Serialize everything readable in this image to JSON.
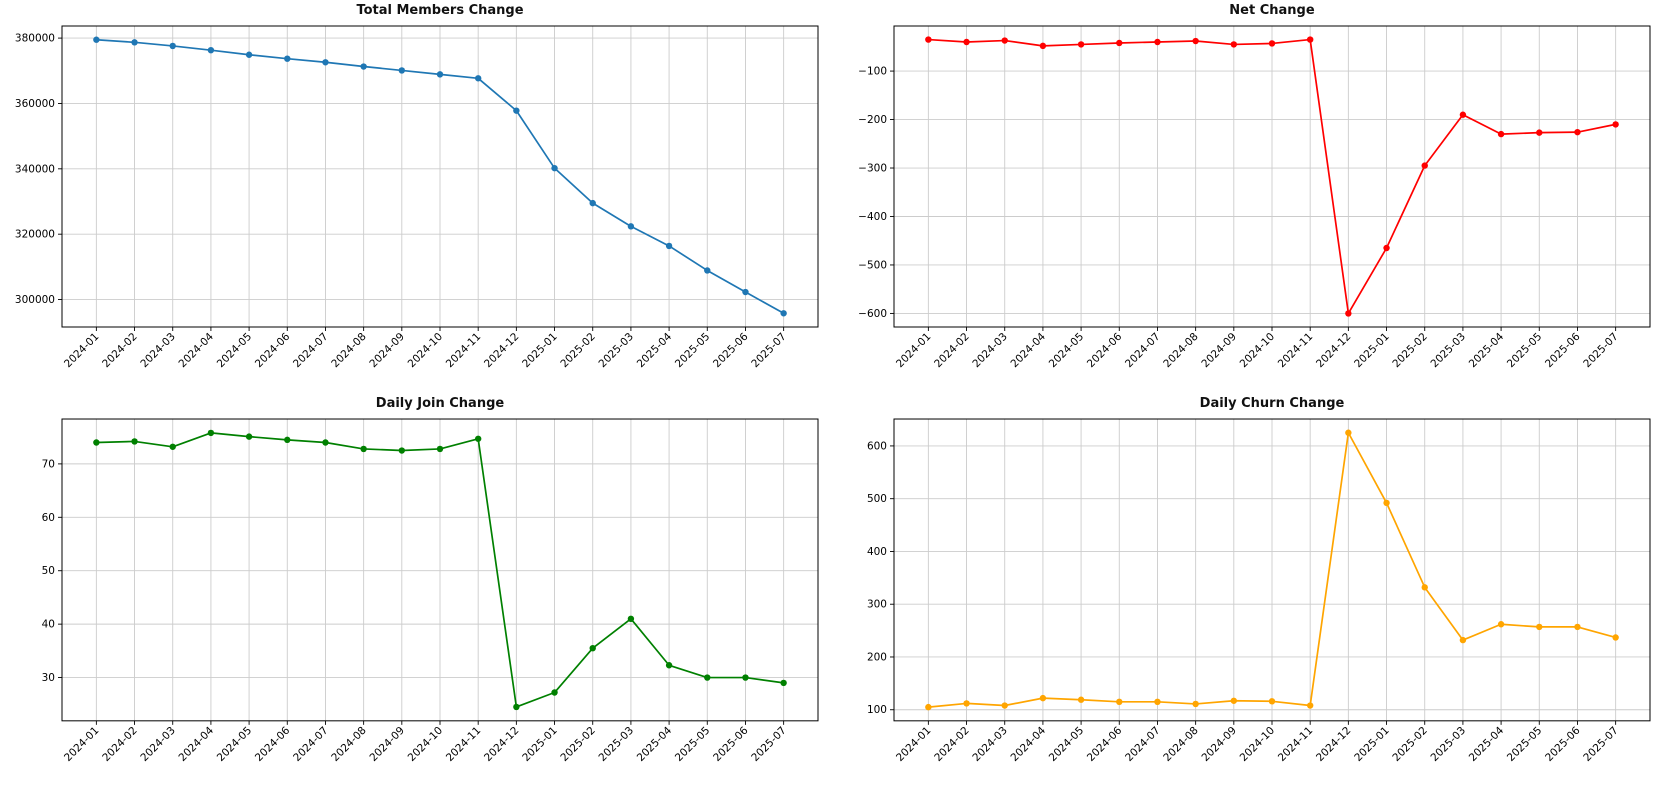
{
  "page": {
    "background": "#ffffff",
    "grid_color": "#cccccc",
    "axis_color": "#000000"
  },
  "chart_data": [
    {
      "type": "line",
      "title": "Total Members Change",
      "color": "#1f77b4",
      "marker": "circle",
      "grid": true,
      "legend": "none",
      "xlabel": "",
      "ylabel": "",
      "categories": [
        "2024-01",
        "2024-02",
        "2024-03",
        "2024-04",
        "2024-05",
        "2024-06",
        "2024-07",
        "2024-08",
        "2024-09",
        "2024-10",
        "2024-11",
        "2024-12",
        "2025-01",
        "2025-02",
        "2025-03",
        "2025-04",
        "2025-05",
        "2025-06",
        "2025-07"
      ],
      "values": [
        379500,
        378700,
        377600,
        376300,
        374900,
        373700,
        372600,
        371300,
        370100,
        368900,
        367700,
        357800,
        340200,
        329500,
        322400,
        316400,
        308900,
        302300,
        295800
      ],
      "ylim": [
        291600,
        383700
      ],
      "yticks": [
        300000,
        320000,
        340000,
        360000,
        380000
      ]
    },
    {
      "type": "line",
      "title": "Net Change",
      "color": "#ff0000",
      "marker": "circle",
      "grid": true,
      "legend": "none",
      "xlabel": "",
      "ylabel": "",
      "categories": [
        "2024-01",
        "2024-02",
        "2024-03",
        "2024-04",
        "2024-05",
        "2024-06",
        "2024-07",
        "2024-08",
        "2024-09",
        "2024-10",
        "2024-11",
        "2024-12",
        "2025-01",
        "2025-02",
        "2025-03",
        "2025-04",
        "2025-05",
        "2025-06",
        "2025-07"
      ],
      "values": [
        -35,
        -40,
        -37,
        -48,
        -45,
        -42,
        -40,
        -38,
        -45,
        -43,
        -35,
        -600,
        -465,
        -295,
        -190,
        -230,
        -227,
        -226,
        -210
      ],
      "ylim": [
        -628,
        -7
      ],
      "yticks": [
        -600,
        -500,
        -400,
        -300,
        -200,
        -100
      ]
    },
    {
      "type": "line",
      "title": "Daily Join Change",
      "color": "#008000",
      "marker": "circle",
      "grid": true,
      "legend": "none",
      "xlabel": "",
      "ylabel": "",
      "categories": [
        "2024-01",
        "2024-02",
        "2024-03",
        "2024-04",
        "2024-05",
        "2024-06",
        "2024-07",
        "2024-08",
        "2024-09",
        "2024-10",
        "2024-11",
        "2024-12",
        "2025-01",
        "2025-02",
        "2025-03",
        "2025-04",
        "2025-05",
        "2025-06",
        "2025-07"
      ],
      "values": [
        74.0,
        74.2,
        73.2,
        75.8,
        75.1,
        74.5,
        74.0,
        72.8,
        72.5,
        72.8,
        74.7,
        24.5,
        27.2,
        35.5,
        41.0,
        32.3,
        30.0,
        30.0,
        29.0
      ],
      "ylim": [
        21.9,
        78.4
      ],
      "yticks": [
        30,
        40,
        50,
        60,
        70
      ]
    },
    {
      "type": "line",
      "title": "Daily Churn Change",
      "color": "#ffa500",
      "marker": "circle",
      "grid": true,
      "legend": "none",
      "xlabel": "",
      "ylabel": "",
      "categories": [
        "2024-01",
        "2024-02",
        "2024-03",
        "2024-04",
        "2024-05",
        "2024-06",
        "2024-07",
        "2024-08",
        "2024-09",
        "2024-10",
        "2024-11",
        "2024-12",
        "2025-01",
        "2025-02",
        "2025-03",
        "2025-04",
        "2025-05",
        "2025-06",
        "2025-07"
      ],
      "values": [
        105,
        112,
        108,
        122,
        119,
        115,
        115,
        111,
        117,
        116,
        108,
        625,
        492,
        332,
        232,
        262,
        257,
        257,
        237
      ],
      "ylim": [
        79,
        651
      ],
      "yticks": [
        100,
        200,
        300,
        400,
        500,
        600
      ]
    }
  ]
}
